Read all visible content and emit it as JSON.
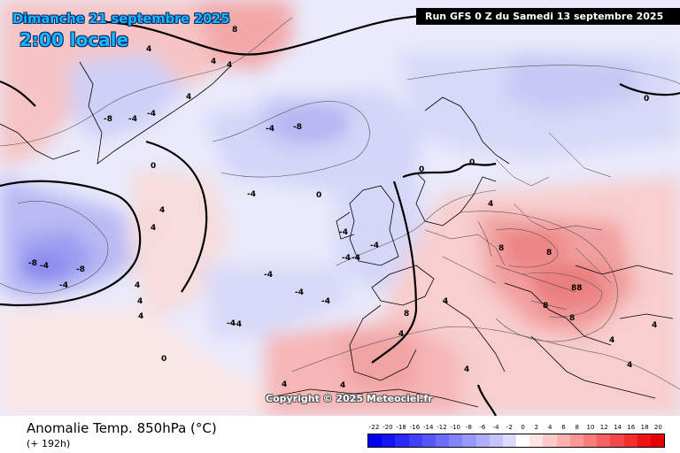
{
  "header": {
    "date_title": "Dimanche 21 septembre 2025",
    "time_title": "2:00 locale",
    "run_info": "Run GFS 0 Z du Samedi 13 septembre 2025"
  },
  "map": {
    "copyright": "Copyright © 2025 Meteociel.fr",
    "contour_labels": [
      "8",
      "4",
      "4",
      "4",
      "4",
      "-8",
      "-4",
      "-4",
      "0",
      "0",
      "4",
      "4",
      "-8",
      "-4",
      "-8",
      "-4",
      "-4",
      "4",
      "4",
      "4",
      "0",
      "-4",
      "-4",
      "-4",
      "-4",
      "-4",
      "-4",
      "-4",
      "-4",
      "-8",
      "-4",
      "0",
      "0",
      "4",
      "8",
      "8",
      "88",
      "8",
      "8",
      "4",
      "8",
      "4",
      "4",
      "4",
      "4",
      "-4",
      "4",
      "4",
      "0",
      "4"
    ]
  },
  "footer": {
    "variable_title": "Anomalie Temp. 850hPa (°C)",
    "lead_time": "(+ 192h)"
  },
  "legend": {
    "ticks": [
      "-22",
      "-20",
      "-18",
      "-16",
      "-14",
      "-12",
      "-10",
      "-8",
      "-6",
      "-4",
      "-2",
      "0",
      "2",
      "4",
      "6",
      "8",
      "10",
      "12",
      "14",
      "16",
      "18",
      "20"
    ],
    "colors": [
      "#0000ee",
      "#1414f2",
      "#2a2af5",
      "#4040f7",
      "#5656f8",
      "#6c6cf9",
      "#8282fa",
      "#9898fb",
      "#aeaefc",
      "#c4c4fd",
      "#dadafe",
      "#ffffff",
      "#fde4e4",
      "#fccaca",
      "#fbb0b0",
      "#fa9696",
      "#f87c7c",
      "#f66262",
      "#f44848",
      "#f22e2e",
      "#ef1414",
      "#e80000"
    ]
  }
}
